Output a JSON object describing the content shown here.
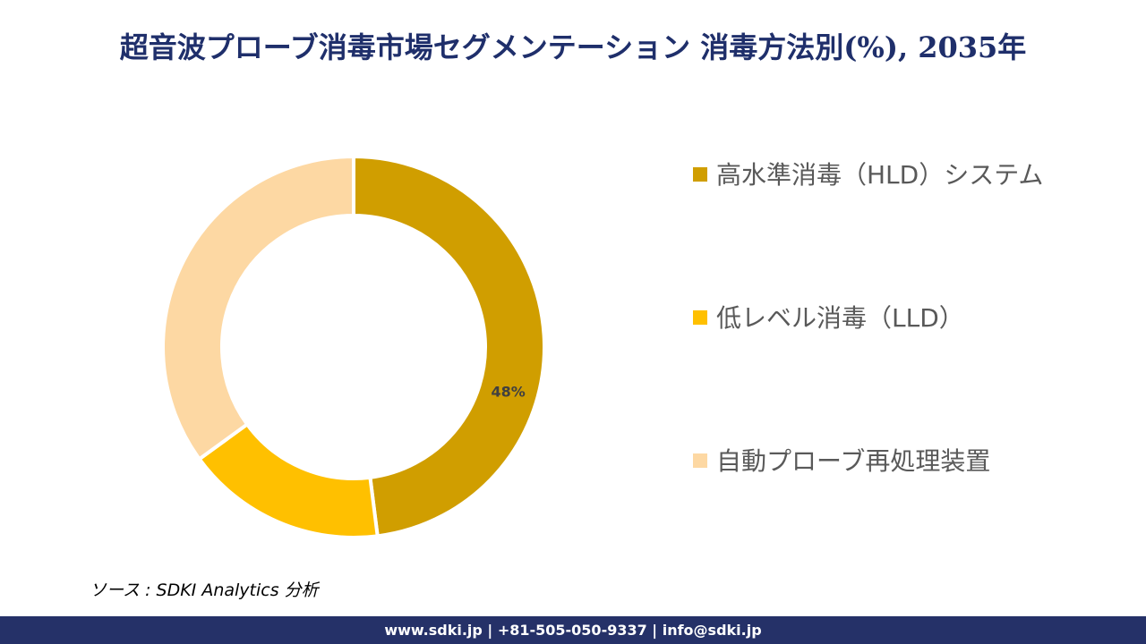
{
  "chart_data": {
    "type": "donut",
    "title": "超音波プローブ消毒市場セグメンテーション 消毒方法別(%), 2035年",
    "categories": [
      "高水準消毒（HLD）システム",
      "低レベル消毒（LLD）",
      "自動プローブ再処理装置"
    ],
    "values": [
      48,
      17,
      35
    ],
    "value_labels": [
      "48%",
      null,
      null
    ],
    "colors": [
      "#D09E00",
      "#FFC000",
      "#FDD8A3"
    ],
    "source": "ソース : SDKI Analytics 分析",
    "footer": "www.sdki.jp | +81-505-050-9337 | info@sdki.jp"
  }
}
